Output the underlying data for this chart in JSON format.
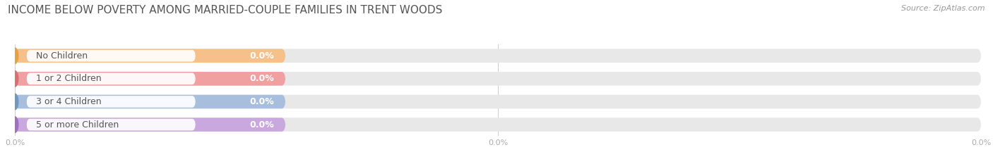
{
  "title": "INCOME BELOW POVERTY AMONG MARRIED-COUPLE FAMILIES IN TRENT WOODS",
  "source": "Source: ZipAtlas.com",
  "categories": [
    "No Children",
    "1 or 2 Children",
    "3 or 4 Children",
    "5 or more Children"
  ],
  "values": [
    0.0,
    0.0,
    0.0,
    0.0
  ],
  "bar_colors": [
    "#f5c08a",
    "#f0a0a0",
    "#a8bedd",
    "#c8a8df"
  ],
  "bar_bg_color": "#e8e8e8",
  "dot_colors": [
    "#e8a040",
    "#d87070",
    "#7098c0",
    "#a070c0"
  ],
  "label_color": "#ffffff",
  "title_color": "#555555",
  "source_color": "#999999",
  "background_color": "#ffffff",
  "bar_height": 0.6,
  "colored_bar_width": 28.0,
  "title_fontsize": 11,
  "label_fontsize": 9,
  "category_fontsize": 9,
  "xlim": [
    0,
    100
  ],
  "xticks": [
    0.0,
    50.0,
    100.0
  ],
  "xtick_labels": [
    "0.0%",
    "0.0%",
    "0.0%"
  ]
}
